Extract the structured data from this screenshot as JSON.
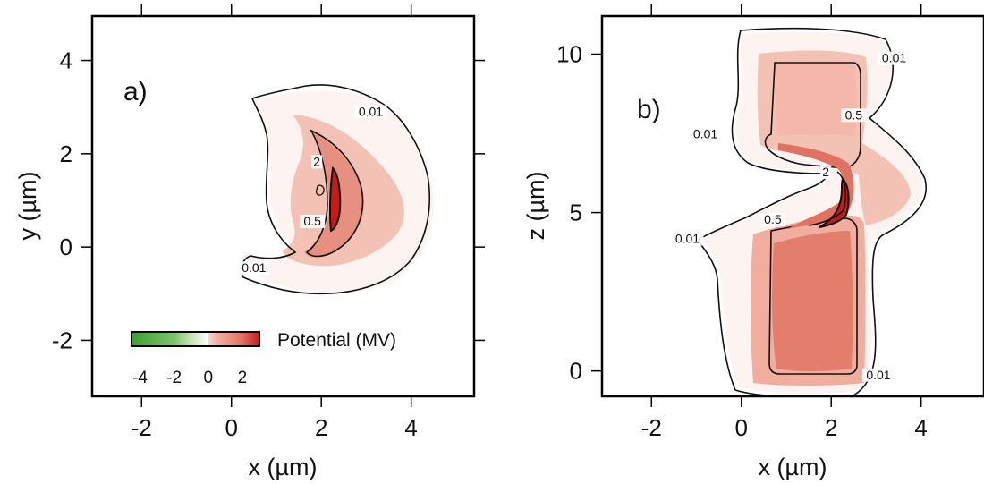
{
  "chart_data": [
    {
      "panel": "a)",
      "type": "heatmap",
      "title": "",
      "xlabel": "x (µm)",
      "ylabel": "y (µm)",
      "xlim": [
        -3.1,
        5.4
      ],
      "ylim": [
        -3.2,
        4.95
      ],
      "xticks": [
        -2,
        0,
        2,
        4
      ],
      "yticks": [
        -2,
        0,
        2,
        4
      ],
      "contour_levels": [
        0.01,
        0.5,
        2
      ],
      "contour_labels": [
        {
          "text": "0.01",
          "x": 3.1,
          "y": 2.85
        },
        {
          "text": "0.01",
          "x": 0.5,
          "y": -0.5
        },
        {
          "text": "0.5",
          "x": 1.8,
          "y": 0.5
        },
        {
          "text": "2",
          "x": 1.9,
          "y": 1.78
        }
      ],
      "legend": {
        "label": "Potential (MV)",
        "ticks": [
          "-4",
          "-2",
          "0",
          "2"
        ],
        "range": [
          -4.5,
          3
        ],
        "placement": "bottom-left"
      },
      "color_stops": [
        {
          "value": -4.5,
          "color": "#3c9f33"
        },
        {
          "value": -2,
          "color": "#7cc46a"
        },
        {
          "value": -1,
          "color": "#c7e3b8"
        },
        {
          "value": 0,
          "color": "#ffffff"
        },
        {
          "value": 0.01,
          "color": "#f9d8d0"
        },
        {
          "value": 0.5,
          "color": "#f1b2a3"
        },
        {
          "value": 2,
          "color": "#e07262"
        },
        {
          "value": 3,
          "color": "#c51b1b"
        }
      ]
    },
    {
      "panel": "b)",
      "type": "heatmap",
      "title": "",
      "xlabel": "x (µm)",
      "ylabel": "z (µm)",
      "xlim": [
        -3.1,
        5.4
      ],
      "ylim": [
        -0.8,
        11.2
      ],
      "xticks": [
        -2,
        0,
        2,
        4
      ],
      "yticks": [
        0,
        5,
        10
      ],
      "contour_levels": [
        0.01,
        0.5,
        2
      ],
      "contour_labels": [
        {
          "text": "0.01",
          "x": 3.4,
          "y": 9.8
        },
        {
          "text": "0.01",
          "x": -0.8,
          "y": 7.4
        },
        {
          "text": "0.01",
          "x": -1.2,
          "y": 4.1
        },
        {
          "text": "0.01",
          "x": 3.05,
          "y": -0.2
        },
        {
          "text": "0.5",
          "x": 2.5,
          "y": 8.0
        },
        {
          "text": "0.5",
          "x": 0.7,
          "y": 4.7
        },
        {
          "text": "2",
          "x": 1.88,
          "y": 6.2
        }
      ]
    }
  ],
  "colors": {
    "text": "#111111",
    "frame": "#000000",
    "pink_light": "#f9d8d0",
    "pink": "#f1b2a3",
    "salmon": "#e07262",
    "red": "#c51b1b",
    "green_dark": "#3c9f33"
  }
}
